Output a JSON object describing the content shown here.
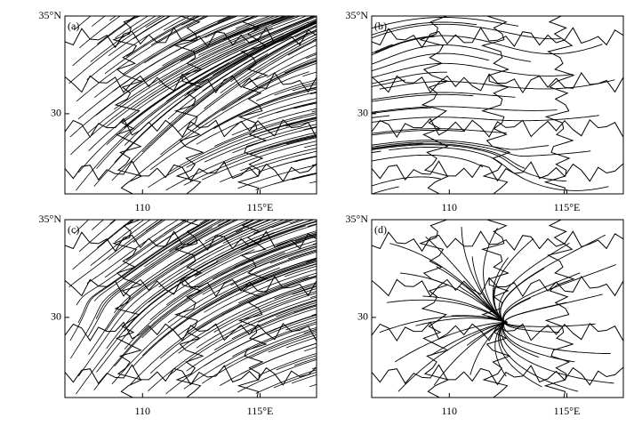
{
  "map": {
    "xlim": [
      106.7,
      117.4
    ],
    "ylim": [
      25.9,
      35
    ],
    "xticks": [
      110,
      {
        "value": 115,
        "label": "115°E"
      }
    ],
    "yticks": [
      {
        "value": 35,
        "label": "35°N"
      },
      30
    ]
  },
  "panels": [
    {
      "label": "(a)"
    },
    {
      "label": "(b)"
    },
    {
      "label": "(c)"
    },
    {
      "label": "(d)"
    }
  ]
}
